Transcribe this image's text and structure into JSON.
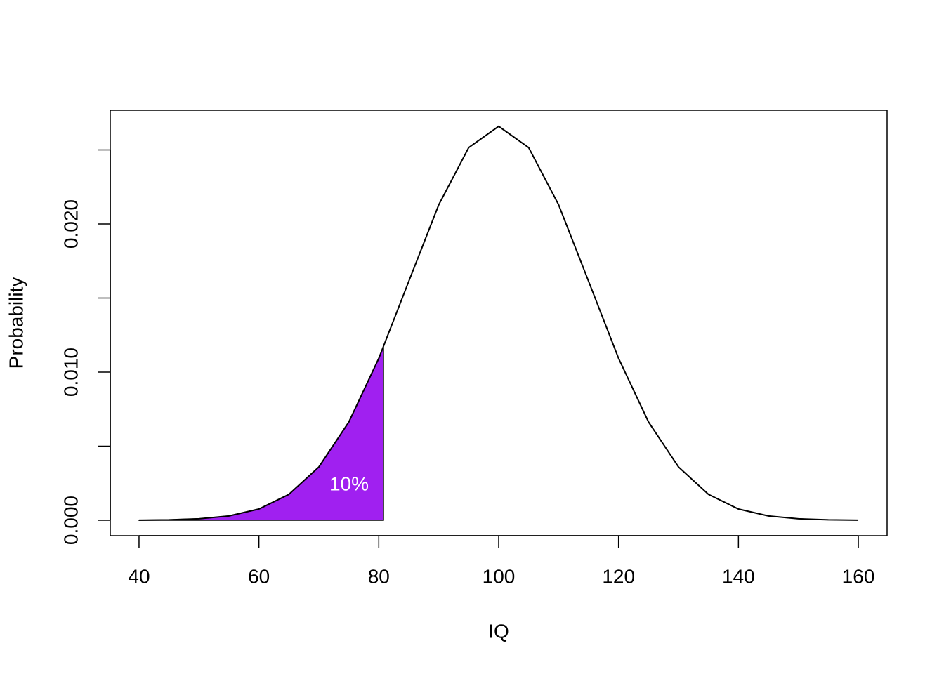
{
  "chart_data": {
    "type": "area",
    "x_label": "IQ",
    "y_label": "Probability",
    "curve": {
      "color": "#000000",
      "x": [
        40,
        45,
        50,
        55,
        60,
        65,
        70,
        75,
        80,
        85,
        90,
        95,
        100,
        105,
        110,
        115,
        120,
        125,
        130,
        135,
        140,
        145,
        150,
        155,
        160
      ],
      "values": [
        8.9e-06,
        3.2e-05,
        0.000103,
        0.000295,
        0.00076,
        0.001748,
        0.0036,
        0.006634,
        0.010934,
        0.016131,
        0.021296,
        0.02516,
        0.026596,
        0.02516,
        0.021296,
        0.016131,
        0.010934,
        0.006634,
        0.0036,
        0.001748,
        0.00076,
        0.000295,
        0.000103,
        3.2e-05,
        8.9e-06
      ]
    },
    "shaded": {
      "color": "#a020f0",
      "x": [
        40,
        45,
        50,
        55,
        60,
        65,
        70,
        75,
        80,
        80.78
      ],
      "values": [
        8.9e-06,
        3.2e-05,
        0.000103,
        0.000295,
        0.00076,
        0.001748,
        0.0036,
        0.006634,
        0.010934,
        0.0117
      ]
    },
    "annotation": "10%",
    "xlim": [
      35.2,
      164.8
    ],
    "xticks": [
      40,
      60,
      80,
      100,
      120,
      140,
      160
    ],
    "ylim": [
      -0.00104,
      0.02768
    ],
    "yticks": [
      {
        "value": 0,
        "label": "0.000"
      },
      0.005,
      {
        "value": 0.01,
        "label": "0.010"
      },
      0.015,
      {
        "value": 0.02,
        "label": "0.020"
      },
      0.025
    ]
  }
}
